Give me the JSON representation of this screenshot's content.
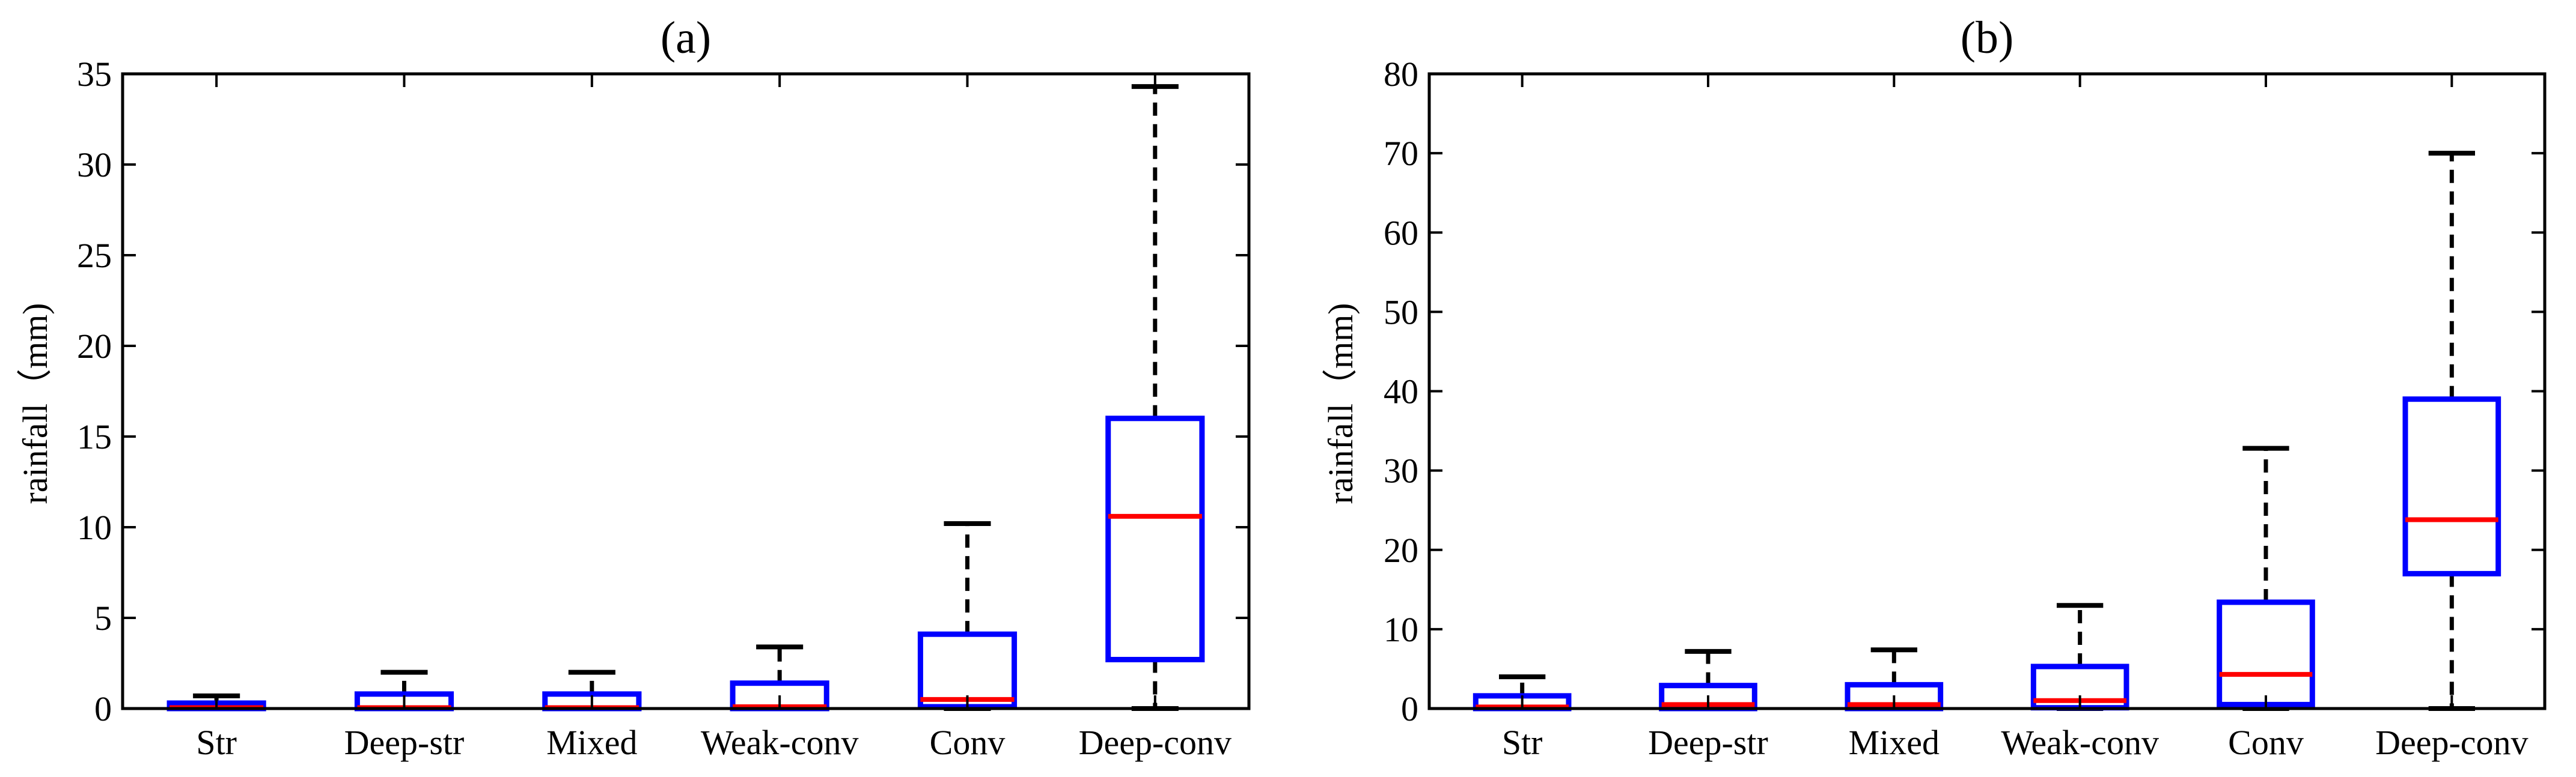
{
  "colors": {
    "box": "#0000ff",
    "median": "#ff0000",
    "whisker": "#000000",
    "frame": "#000000",
    "background": "#ffffff"
  },
  "chart_data": [
    {
      "type": "box",
      "title": "(a)",
      "xlabel": "",
      "ylabel": "rainfall（mm)",
      "ylim": [
        0,
        35
      ],
      "yticks": [
        0,
        5,
        10,
        15,
        20,
        25,
        30,
        35
      ],
      "ytick_labels": [
        "0",
        "5",
        "10",
        "15",
        "20",
        "25",
        "30",
        "35"
      ],
      "categories": [
        "Str",
        "Deep-str",
        "Mixed",
        "Weak-conv",
        "Conv",
        "Deep-conv"
      ],
      "boxes": [
        {
          "label": "Str",
          "whisker_low": 0,
          "q1": 0,
          "median": 0.05,
          "q3": 0.3,
          "whisker_high": 0.7
        },
        {
          "label": "Deep-str",
          "whisker_low": 0,
          "q1": 0,
          "median": 0.05,
          "q3": 0.8,
          "whisker_high": 2.0
        },
        {
          "label": "Mixed",
          "whisker_low": 0,
          "q1": 0,
          "median": 0.05,
          "q3": 0.8,
          "whisker_high": 2.0
        },
        {
          "label": "Weak-conv",
          "whisker_low": 0,
          "q1": 0,
          "median": 0.1,
          "q3": 1.4,
          "whisker_high": 3.4
        },
        {
          "label": "Conv",
          "whisker_low": 0,
          "q1": 0.1,
          "median": 0.5,
          "q3": 4.1,
          "whisker_high": 10.2
        },
        {
          "label": "Deep-conv",
          "whisker_low": 0,
          "q1": 2.7,
          "median": 10.6,
          "q3": 16.0,
          "whisker_high": 34.3
        }
      ]
    },
    {
      "type": "box",
      "title": "(b)",
      "xlabel": "",
      "ylabel": "rainfall（mm)",
      "ylim": [
        0,
        80
      ],
      "yticks": [
        0,
        10,
        20,
        30,
        40,
        50,
        60,
        70,
        80
      ],
      "ytick_labels": [
        "0",
        "10",
        "20",
        "30",
        "40",
        "50",
        "60",
        "70",
        "80"
      ],
      "categories": [
        "Str",
        "Deep-str",
        "Mixed",
        "Weak-conv",
        "Conv",
        "Deep-conv"
      ],
      "boxes": [
        {
          "label": "Str",
          "whisker_low": 0,
          "q1": 0,
          "median": 0.2,
          "q3": 1.6,
          "whisker_high": 4.0
        },
        {
          "label": "Deep-str",
          "whisker_low": 0,
          "q1": 0,
          "median": 0.5,
          "q3": 2.9,
          "whisker_high": 7.2
        },
        {
          "label": "Mixed",
          "whisker_low": 0,
          "q1": 0,
          "median": 0.5,
          "q3": 3.0,
          "whisker_high": 7.4
        },
        {
          "label": "Weak-conv",
          "whisker_low": 0,
          "q1": 0.1,
          "median": 1.0,
          "q3": 5.3,
          "whisker_high": 13.0
        },
        {
          "label": "Conv",
          "whisker_low": 0,
          "q1": 0.5,
          "median": 4.3,
          "q3": 13.4,
          "whisker_high": 32.8
        },
        {
          "label": "Deep-conv",
          "whisker_low": 0,
          "q1": 17.0,
          "median": 23.8,
          "q3": 39.0,
          "whisker_high": 70.0
        }
      ]
    }
  ]
}
